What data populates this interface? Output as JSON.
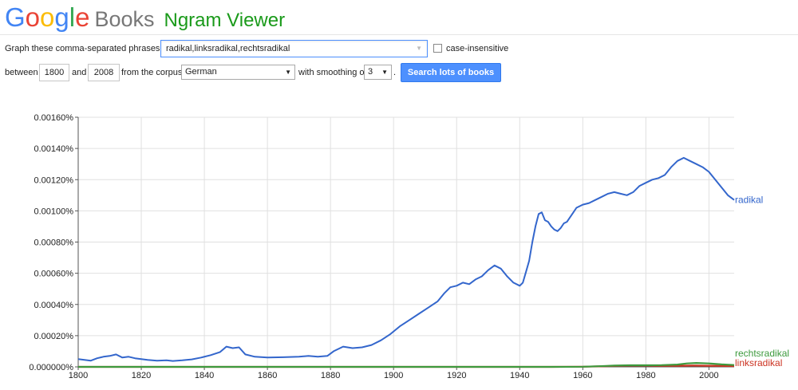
{
  "brand": {
    "logo_letters": [
      "G",
      "o",
      "o",
      "g",
      "l",
      "e"
    ],
    "logo_colors": [
      "#4285f4",
      "#ea4335",
      "#fbbc05",
      "#4285f4",
      "#34a853",
      "#ea4335"
    ],
    "books": "Books",
    "title": "Ngram Viewer"
  },
  "form": {
    "graph_label": "Graph these comma-separated phrases:",
    "phrases": "radikal,linksradikal,rechtsradikal",
    "case_insensitive_label": "case-insensitive",
    "case_insensitive_checked": false,
    "between_label": "between",
    "year_start": "1800",
    "and_label": "and",
    "year_end": "2008",
    "corpus_label": "from the corpus",
    "corpus": "German",
    "smoothing_label": "with smoothing of",
    "smoothing": "3",
    "period": ".",
    "search_button": "Search lots of books"
  },
  "chart_data": {
    "type": "line",
    "xlim": [
      1800,
      2008
    ],
    "ylim": [
      0,
      0.0016
    ],
    "x_ticks": [
      "1800",
      "1820",
      "1840",
      "1860",
      "1880",
      "1900",
      "1920",
      "1940",
      "1960",
      "1980",
      "2000"
    ],
    "y_ticks": [
      "0.000000%",
      "0.00020%",
      "0.00040%",
      "0.00060%",
      "0.00080%",
      "0.00100%",
      "0.00120%",
      "0.00140%",
      "0.00160%"
    ],
    "grid": true,
    "series": [
      {
        "name": "radikal",
        "color": "#3366cc",
        "x": [
          1800,
          1802,
          1804,
          1806,
          1808,
          1810,
          1812,
          1814,
          1816,
          1818,
          1820,
          1822,
          1825,
          1828,
          1830,
          1833,
          1836,
          1839,
          1842,
          1845,
          1847,
          1849,
          1851,
          1853,
          1856,
          1860,
          1865,
          1870,
          1873,
          1876,
          1879,
          1881,
          1884,
          1887,
          1890,
          1893,
          1896,
          1899,
          1902,
          1905,
          1908,
          1911,
          1914,
          1916,
          1918,
          1920,
          1922,
          1924,
          1926,
          1928,
          1930,
          1932,
          1934,
          1936,
          1938,
          1940,
          1941,
          1942,
          1943,
          1944,
          1945,
          1946,
          1947,
          1948,
          1949,
          1950,
          1951,
          1952,
          1953,
          1954,
          1955,
          1956,
          1957,
          1958,
          1960,
          1962,
          1964,
          1966,
          1968,
          1970,
          1972,
          1974,
          1976,
          1978,
          1980,
          1982,
          1984,
          1986,
          1988,
          1990,
          1992,
          1994,
          1996,
          1998,
          2000,
          2002,
          2004,
          2006,
          2008
        ],
        "y": [
          5e-05,
          4.5e-05,
          4e-05,
          5.5e-05,
          6.5e-05,
          7e-05,
          8e-05,
          6e-05,
          6.5e-05,
          5.5e-05,
          5e-05,
          4.5e-05,
          4e-05,
          4.2e-05,
          3.8e-05,
          4.2e-05,
          4.8e-05,
          6e-05,
          7.5e-05,
          9.5e-05,
          0.00013,
          0.00012,
          0.000125,
          8e-05,
          6.5e-05,
          6e-05,
          6.2e-05,
          6.5e-05,
          7e-05,
          6.5e-05,
          7e-05,
          0.0001,
          0.00013,
          0.00012,
          0.000125,
          0.00014,
          0.00017,
          0.00021,
          0.00026,
          0.0003,
          0.00034,
          0.00038,
          0.00042,
          0.00047,
          0.00051,
          0.00052,
          0.00054,
          0.00053,
          0.00056,
          0.00058,
          0.00062,
          0.00065,
          0.00063,
          0.00058,
          0.00054,
          0.00052,
          0.00054,
          0.00061,
          0.00068,
          0.0008,
          0.0009,
          0.00098,
          0.00099,
          0.00094,
          0.00093,
          0.0009,
          0.00088,
          0.00087,
          0.00089,
          0.00092,
          0.00093,
          0.00096,
          0.00099,
          0.00102,
          0.00104,
          0.00105,
          0.00107,
          0.00109,
          0.00111,
          0.00112,
          0.00111,
          0.0011,
          0.00112,
          0.00116,
          0.00118,
          0.0012,
          0.00121,
          0.00123,
          0.00128,
          0.00132,
          0.00134,
          0.00132,
          0.0013,
          0.00128,
          0.00125,
          0.0012,
          0.00115,
          0.0011,
          0.00107
        ]
      },
      {
        "name": "rechtsradikal",
        "color": "#3d9a3d",
        "x": [
          1800,
          1900,
          1950,
          1960,
          1965,
          1970,
          1975,
          1980,
          1985,
          1990,
          1993,
          1996,
          2000,
          2004,
          2008
        ],
        "y": [
          0,
          0,
          0,
          1e-06,
          4e-06,
          8e-06,
          1e-05,
          1e-05,
          1.1e-05,
          1.5e-05,
          2.2e-05,
          2.5e-05,
          2.2e-05,
          1.6e-05,
          1.2e-05
        ]
      },
      {
        "name": "linksradikal",
        "color": "#cc3322",
        "x": [
          1800,
          1900,
          1950,
          1960,
          1965,
          1970,
          1975,
          1980,
          1985,
          1990,
          1995,
          2000,
          2004,
          2008
        ],
        "y": [
          0,
          0,
          0,
          1e-06,
          3e-06,
          6e-06,
          8e-06,
          8e-06,
          7e-06,
          7e-06,
          8e-06,
          7e-06,
          6e-06,
          5e-06
        ]
      }
    ]
  }
}
